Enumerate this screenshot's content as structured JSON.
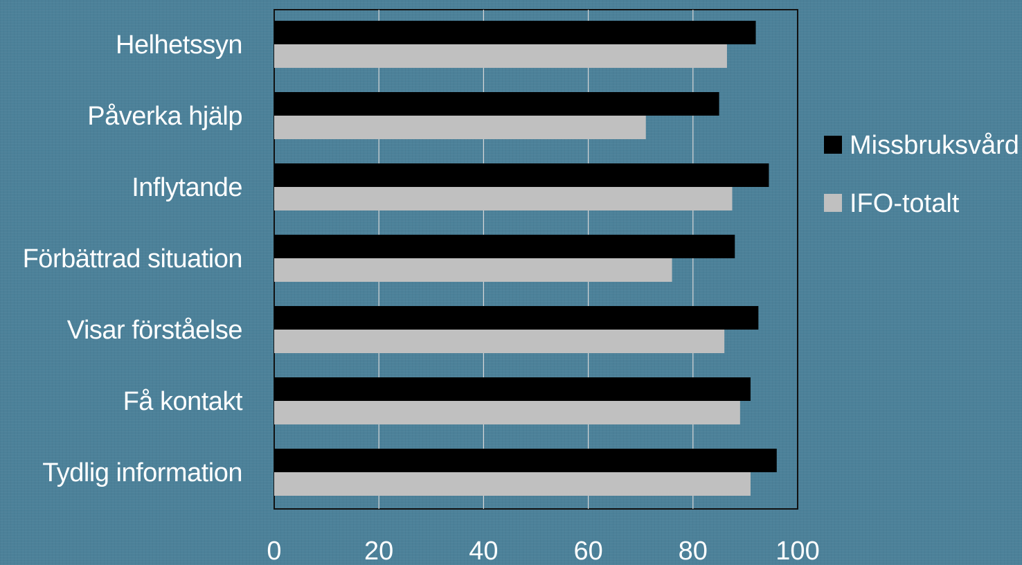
{
  "colors": {
    "background": "#4c8199",
    "series_1": "#000000",
    "series_2": "#c0c0c0",
    "gridline": "#d8d8d8",
    "text": "#ffffff"
  },
  "chart_data": {
    "type": "bar",
    "orientation": "horizontal",
    "categories": [
      "Helhetssyn",
      "Påverka hjälp",
      "Inflytande",
      "Förbättrad situation",
      "Visar förståelse",
      "Få kontakt",
      "Tydlig information"
    ],
    "series": [
      {
        "name": "Missbruksvård",
        "color": "#000000",
        "values": [
          92,
          85,
          94.5,
          88,
          92.5,
          91,
          96
        ]
      },
      {
        "name": "IFO-totalt",
        "color": "#c0c0c0",
        "values": [
          86.5,
          71,
          87.5,
          76,
          86,
          89,
          91
        ]
      }
    ],
    "xlim": [
      0,
      100
    ],
    "xticks": [
      "0",
      "20",
      "40",
      "60",
      "80",
      "100"
    ],
    "grid": "vertical",
    "legend_position": "right"
  }
}
